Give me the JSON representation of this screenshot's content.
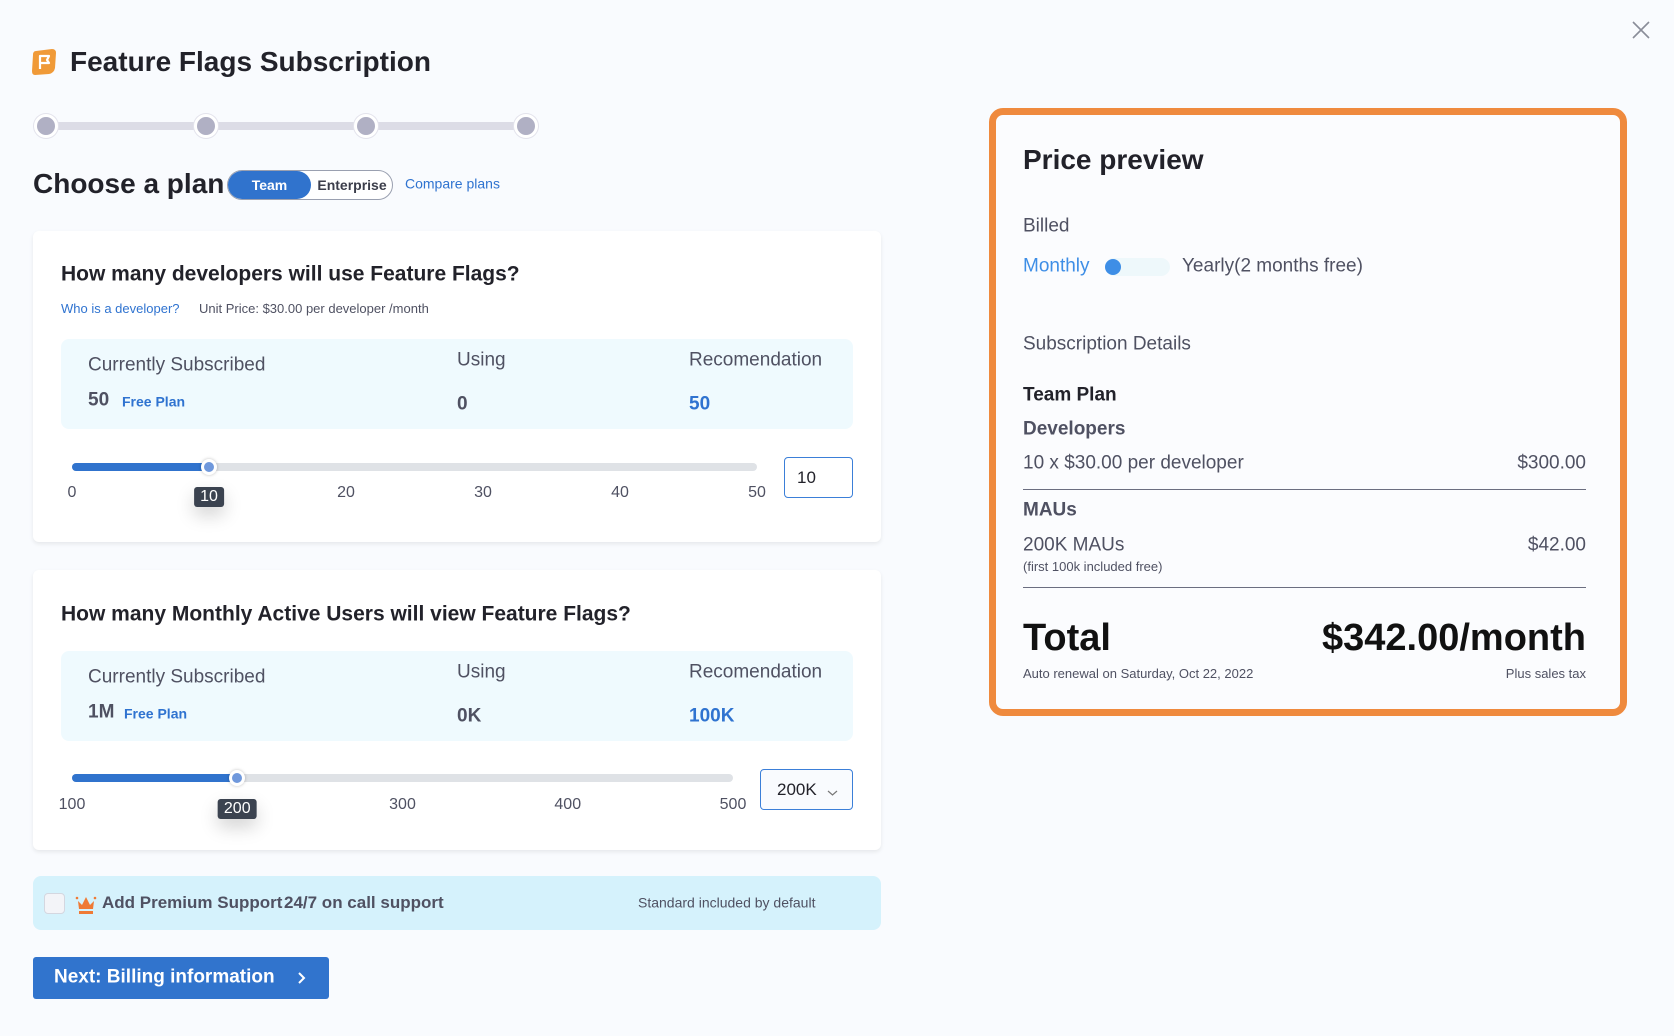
{
  "header": {
    "title": "Feature Flags Subscription",
    "close_icon": "close-icon",
    "logo_icon": "feature-flag-logo-icon"
  },
  "steps": {
    "count": 4,
    "current": 0
  },
  "plan": {
    "title": "Choose a plan",
    "options": [
      "Team",
      "Enterprise"
    ],
    "selected": "Team",
    "compare_link": "Compare plans"
  },
  "developers": {
    "title": "How many developers will use Feature Flags?",
    "help_link": "Who is a developer?",
    "unit_price": "Unit Price: $30.00 per developer /month",
    "subscribed_label": "Currently Subscribed",
    "subscribed_value": "50",
    "subscribed_plan": "Free Plan",
    "using_label": "Using",
    "using_value": "0",
    "recommendation_label": "Recomendation",
    "recommendation_value": "50",
    "slider": {
      "min": 0,
      "max": 50,
      "value": 10,
      "ticks": [
        "0",
        "10",
        "20",
        "30",
        "40",
        "50"
      ],
      "tooltip": "10"
    },
    "input_value": "10"
  },
  "maus": {
    "title": "How many Monthly Active Users will view Feature Flags?",
    "subscribed_label": "Currently Subscribed",
    "subscribed_value": "1M",
    "subscribed_plan": "Free Plan",
    "using_label": "Using",
    "using_value": "0K",
    "recommendation_label": "Recomendation",
    "recommendation_value": "100K",
    "slider": {
      "min": 100,
      "max": 500,
      "value": 200,
      "ticks": [
        "100",
        "200",
        "300",
        "400",
        "500"
      ],
      "tooltip": "200"
    },
    "select_value": "200K"
  },
  "support": {
    "label": "Add Premium Support",
    "sub": "24/7 on call support",
    "note": "Standard included by default",
    "checked": false
  },
  "next_button": "Next: Billing information",
  "preview": {
    "title": "Price preview",
    "billed_label": "Billed",
    "monthly": "Monthly",
    "yearly": "Yearly(2 months free)",
    "billing": "monthly",
    "details_label": "Subscription Details",
    "plan_name": "Team Plan",
    "developers_label": "Developers",
    "developers_line": "10 x $30.00 per developer",
    "developers_price": "$300.00",
    "maus_label": "MAUs",
    "maus_line": "200K MAUs",
    "maus_note": "(first 100k included free)",
    "maus_price": "$42.00",
    "total_label": "Total",
    "total_value": "$342.00/month",
    "renewal": "Auto renewal on Saturday, Oct 22, 2022",
    "tax_note": "Plus sales tax"
  },
  "colors": {
    "accent": "#2f73d0",
    "highlight_border": "#ef8a3e",
    "info_bg": "#effafe",
    "support_bg": "#d5f2fc"
  }
}
